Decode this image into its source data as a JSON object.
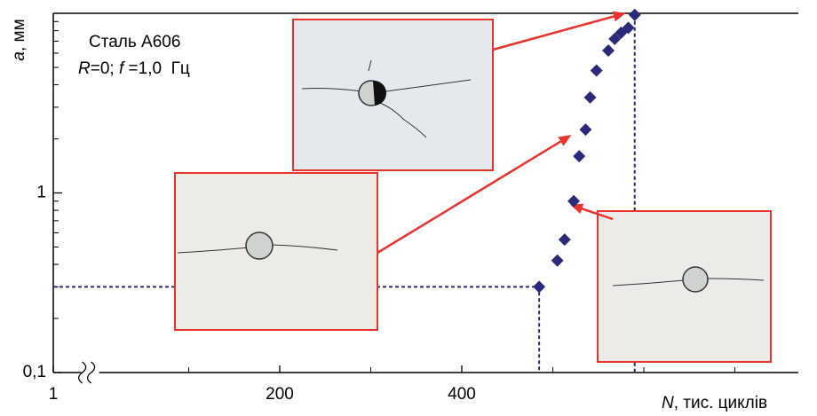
{
  "chart_data": {
    "type": "scatter",
    "annotation": [
      "Сталь А606",
      "R",
      "=0; ",
      "f",
      " =1,0  Гц"
    ],
    "xlabel": [
      "N",
      ", тис. циклів"
    ],
    "ylabel": [
      "a",
      ", мм"
    ],
    "x": [
      485,
      505,
      513,
      523,
      529,
      536,
      541,
      548,
      561,
      568,
      575,
      583,
      590
    ],
    "values": [
      0.3,
      0.42,
      0.55,
      0.9,
      1.6,
      2.25,
      3.4,
      4.8,
      6.2,
      7.2,
      7.8,
      8.3,
      9.8
    ],
    "color": "#2b2a7a",
    "xlim": [
      1,
      770
    ],
    "xbreak": [
      1,
      50
    ],
    "xticks": [
      1,
      200,
      400
    ],
    "xminor": [
      100,
      300,
      500,
      600,
      700
    ],
    "ylim": [
      0.1,
      10
    ],
    "ylog": true,
    "yticks": [
      {
        "value": 0.1,
        "label": "0,1"
      },
      1
    ],
    "yminor": [
      0.2,
      0.3,
      0.4,
      0.5,
      0.6,
      0.7,
      0.8,
      0.9,
      2,
      3,
      4,
      5,
      6,
      7,
      8,
      9
    ]
  }
}
